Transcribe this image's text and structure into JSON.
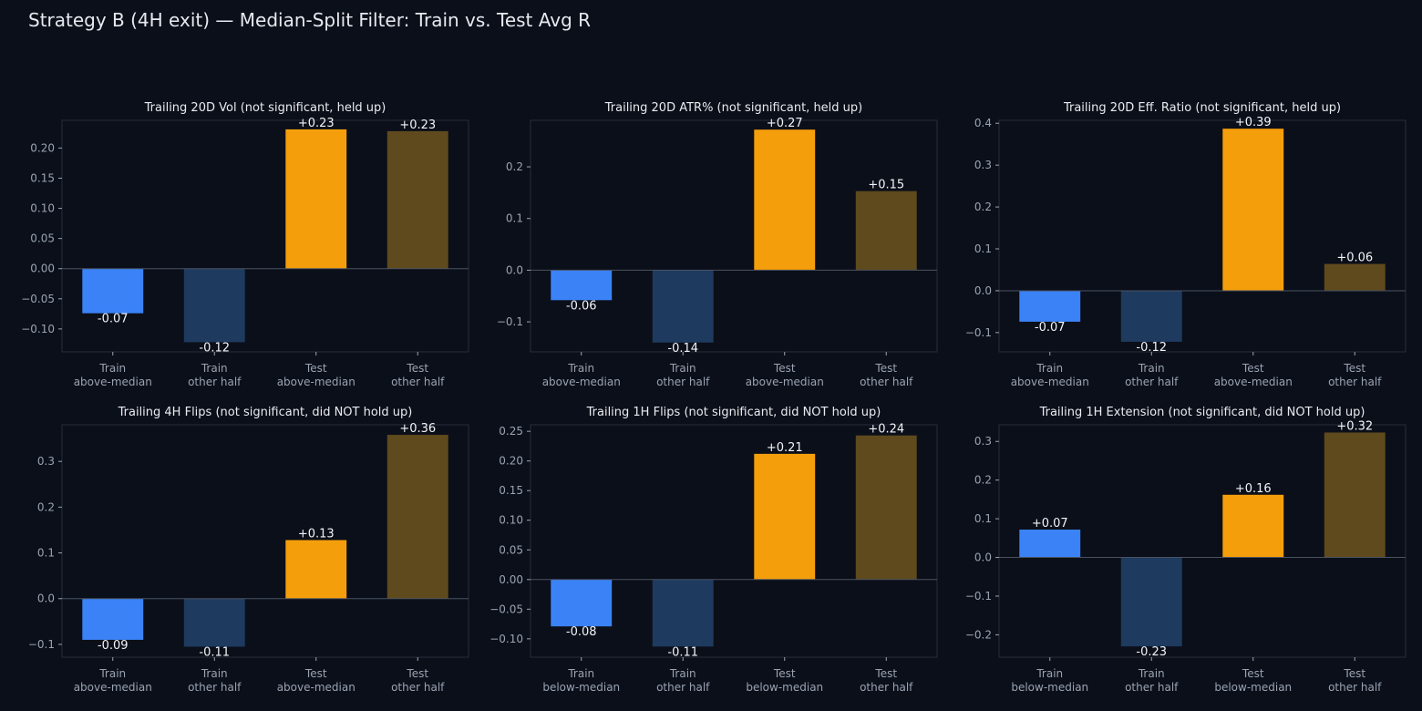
{
  "title": "Strategy B (4H exit) — Median-Split Filter: Train vs. Test Avg R",
  "colors": {
    "background": "#0b0f19",
    "train_primary": "#3b82f6",
    "train_other": "#1e3a5f",
    "test_primary": "#f59e0b",
    "test_other": "#5f4a1e",
    "zero_line": "#4a5262",
    "frame": "#262d3a"
  },
  "chart_data": [
    {
      "type": "bar",
      "title": "Trailing 20D Vol (not significant, held up)",
      "categories": [
        "Train\nabove-median",
        "Train\nother half",
        "Test\nabove-median",
        "Test\nother half"
      ],
      "values": [
        -0.074,
        -0.122,
        0.231,
        0.228
      ],
      "value_labels": [
        "-0.07",
        "-0.12",
        "+0.23",
        "+0.23"
      ],
      "ylim": [
        -0.138,
        0.246
      ],
      "yticks": [
        -0.1,
        -0.05,
        0.0,
        0.05,
        0.1,
        0.15,
        0.2
      ],
      "ytick_labels": [
        "−0.10",
        "−0.05",
        "0.00",
        "0.05",
        "0.10",
        "0.15",
        "0.20"
      ]
    },
    {
      "type": "bar",
      "title": "Trailing 20D ATR% (not significant, held up)",
      "categories": [
        "Train\nabove-median",
        "Train\nother half",
        "Test\nabove-median",
        "Test\nother half"
      ],
      "values": [
        -0.058,
        -0.14,
        0.272,
        0.153
      ],
      "value_labels": [
        "-0.06",
        "-0.14",
        "+0.27",
        "+0.15"
      ],
      "ylim": [
        -0.158,
        0.29
      ],
      "yticks": [
        -0.1,
        0.0,
        0.1,
        0.2
      ],
      "ytick_labels": [
        "−0.1",
        "0.0",
        "0.1",
        "0.2"
      ]
    },
    {
      "type": "bar",
      "title": "Trailing 20D Eff. Ratio (not significant, held up)",
      "categories": [
        "Train\nabove-median",
        "Train\nother half",
        "Test\nabove-median",
        "Test\nother half"
      ],
      "values": [
        -0.074,
        -0.122,
        0.387,
        0.064
      ],
      "value_labels": [
        "-0.07",
        "-0.12",
        "+0.39",
        "+0.06"
      ],
      "ylim": [
        -0.146,
        0.407
      ],
      "yticks": [
        -0.1,
        0.0,
        0.1,
        0.2,
        0.3,
        0.4
      ],
      "ytick_labels": [
        "−0.1",
        "0.0",
        "0.1",
        "0.2",
        "0.3",
        "0.4"
      ]
    },
    {
      "type": "bar",
      "title": "Trailing 4H Flips (not significant, did NOT hold up)",
      "categories": [
        "Train\nabove-median",
        "Train\nother half",
        "Test\nabove-median",
        "Test\nother half"
      ],
      "values": [
        -0.09,
        -0.105,
        0.128,
        0.358
      ],
      "value_labels": [
        "-0.09",
        "-0.11",
        "+0.13",
        "+0.36"
      ],
      "ylim": [
        -0.128,
        0.38
      ],
      "yticks": [
        -0.1,
        0.0,
        0.1,
        0.2,
        0.3
      ],
      "ytick_labels": [
        "−0.1",
        "0.0",
        "0.1",
        "0.2",
        "0.3"
      ]
    },
    {
      "type": "bar",
      "title": "Trailing 1H Flips (not significant, did NOT hold up)",
      "categories": [
        "Train\nbelow-median",
        "Train\nother half",
        "Test\nbelow-median",
        "Test\nother half"
      ],
      "values": [
        -0.079,
        -0.113,
        0.212,
        0.243
      ],
      "value_labels": [
        "-0.08",
        "-0.11",
        "+0.21",
        "+0.24"
      ],
      "ylim": [
        -0.131,
        0.261
      ],
      "yticks": [
        -0.1,
        -0.05,
        0.0,
        0.05,
        0.1,
        0.15,
        0.2,
        0.25
      ],
      "ytick_labels": [
        "−0.10",
        "−0.05",
        "0.00",
        "0.05",
        "0.10",
        "0.15",
        "0.20",
        "0.25"
      ]
    },
    {
      "type": "bar",
      "title": "Trailing 1H Extension (not significant, did NOT hold up)",
      "categories": [
        "Train\nbelow-median",
        "Train\nother half",
        "Test\nbelow-median",
        "Test\nother half"
      ],
      "values": [
        0.072,
        -0.23,
        0.162,
        0.323
      ],
      "value_labels": [
        "+0.07",
        "-0.23",
        "+0.16",
        "+0.32"
      ],
      "ylim": [
        -0.258,
        0.343
      ],
      "yticks": [
        -0.2,
        -0.1,
        0.0,
        0.1,
        0.2,
        0.3
      ],
      "ytick_labels": [
        "−0.2",
        "−0.1",
        "0.0",
        "0.1",
        "0.2",
        "0.3"
      ]
    }
  ]
}
